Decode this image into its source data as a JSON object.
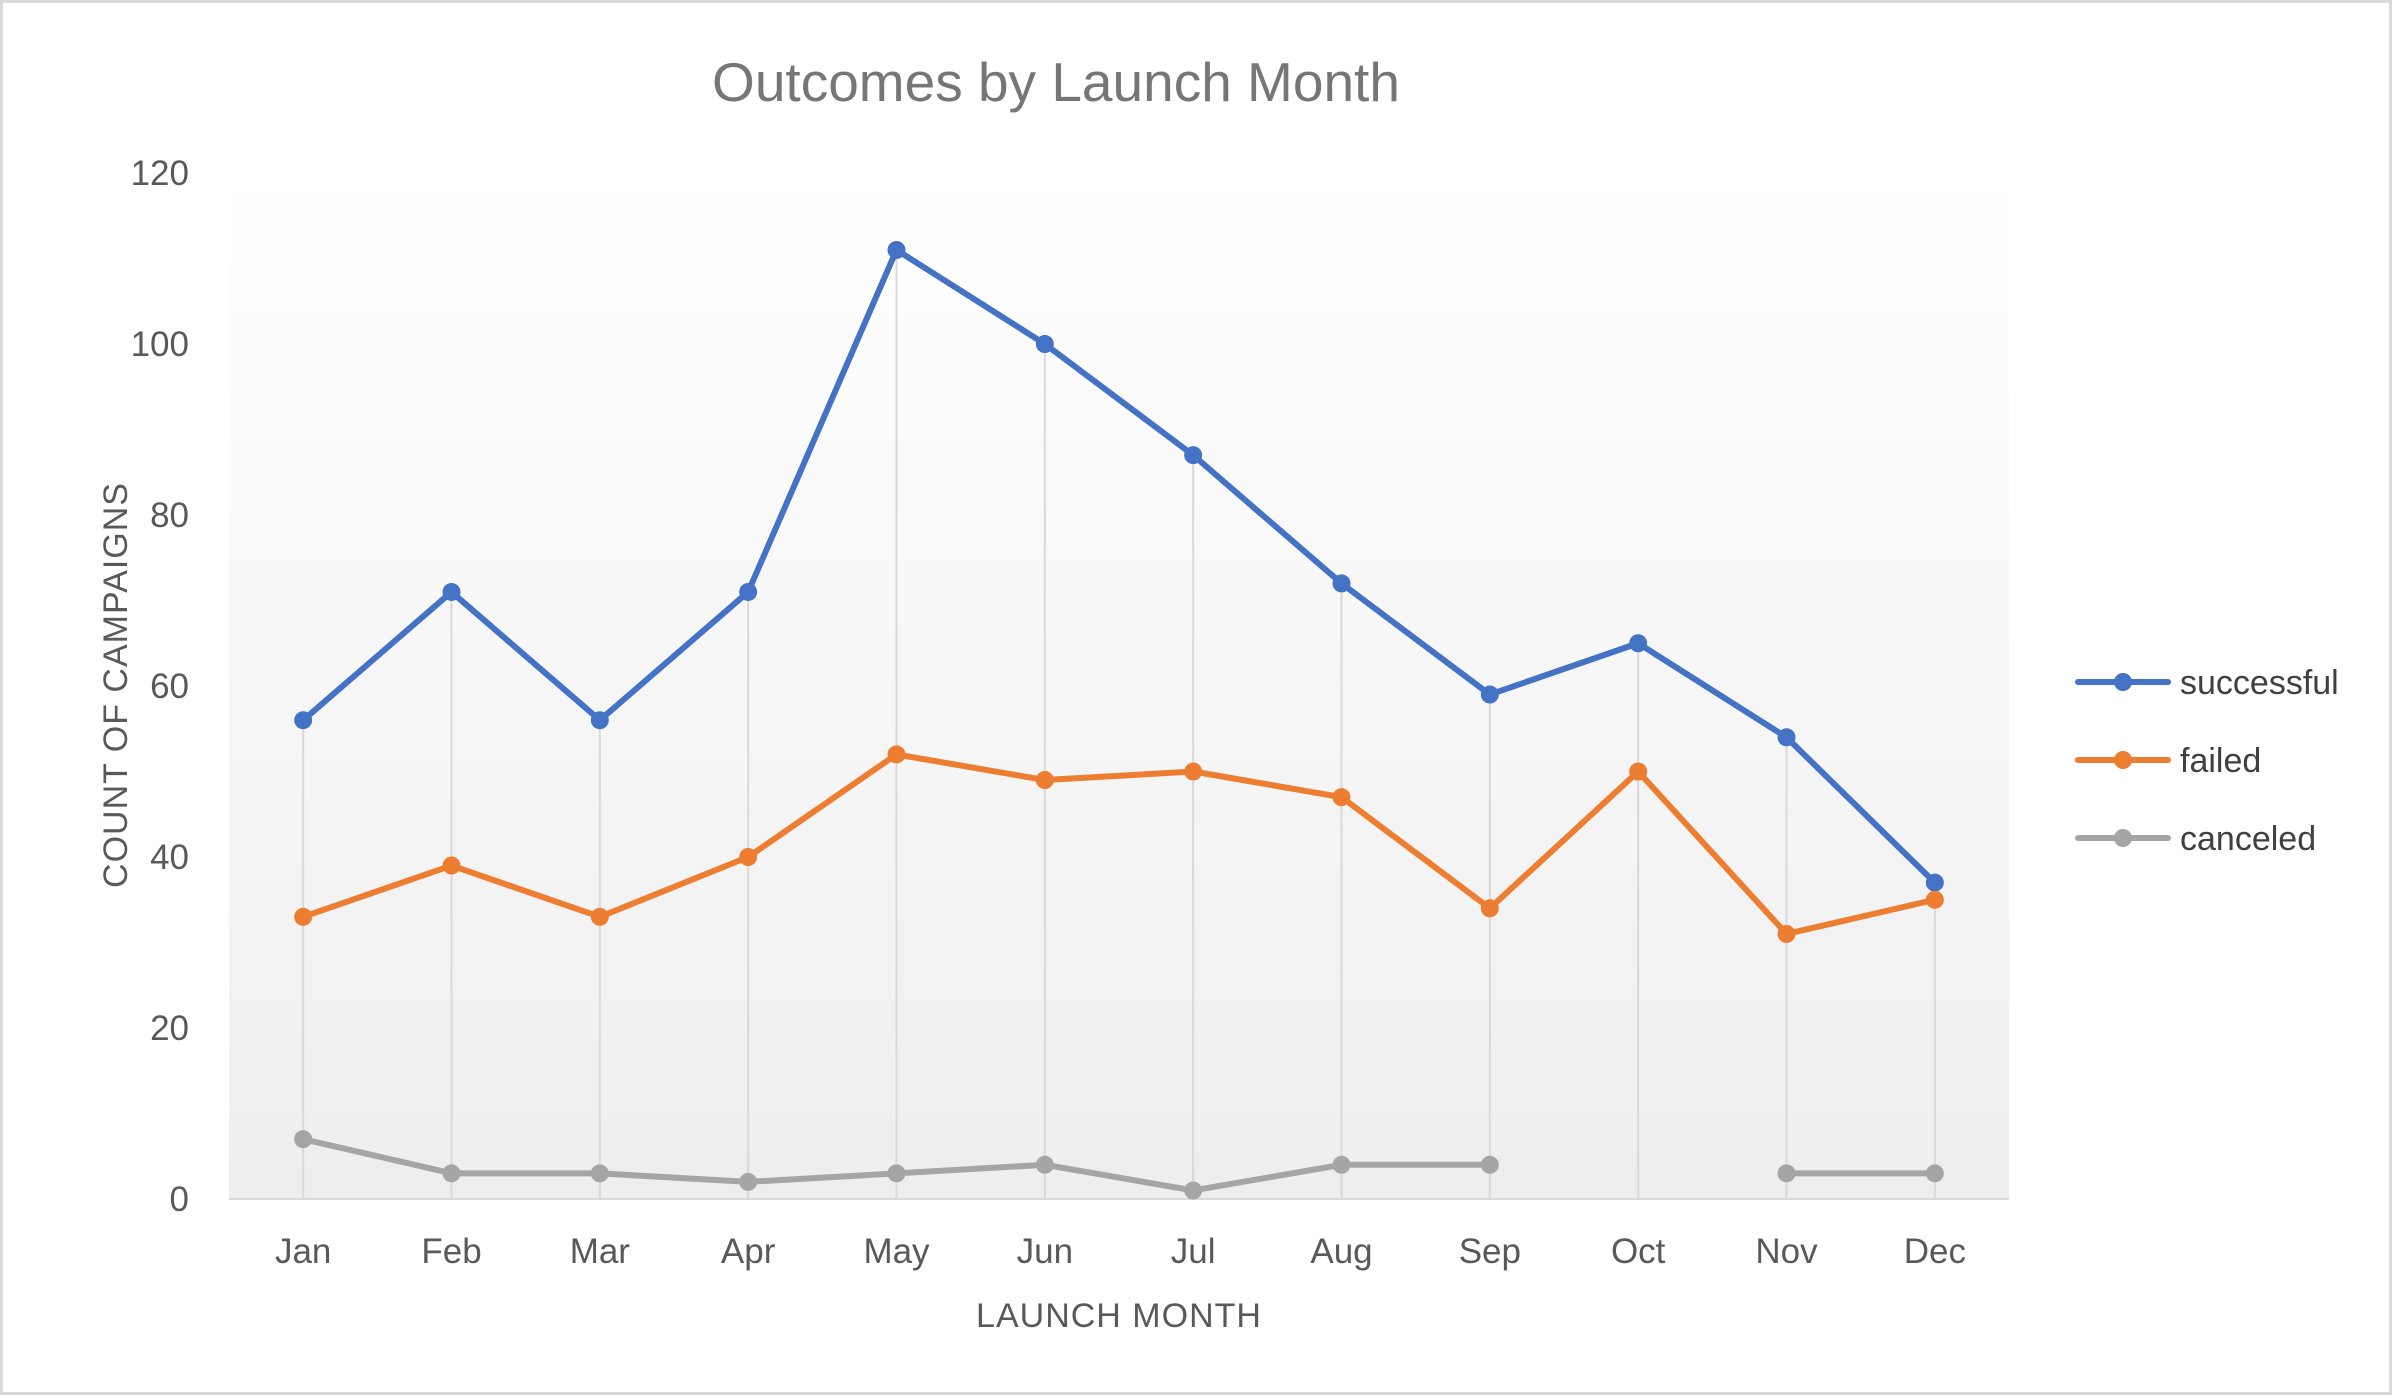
{
  "chart_data": {
    "type": "line",
    "title": "Outcomes by Launch Month",
    "xlabel": "LAUNCH MONTH",
    "ylabel": "COUNT OF CAMPAIGNS",
    "categories": [
      "Jan",
      "Feb",
      "Mar",
      "Apr",
      "May",
      "Jun",
      "Jul",
      "Aug",
      "Sep",
      "Oct",
      "Nov",
      "Dec"
    ],
    "ylim": [
      0,
      120
    ],
    "yticks": [
      0,
      20,
      40,
      60,
      80,
      100,
      120
    ],
    "grid": "vertical drop lines",
    "legend_position": "right",
    "series": [
      {
        "name": "successful",
        "color": "#4472c4",
        "values": [
          56,
          71,
          56,
          71,
          111,
          100,
          87,
          72,
          59,
          65,
          54,
          37
        ]
      },
      {
        "name": "failed",
        "color": "#ed7d31",
        "values": [
          33,
          39,
          33,
          40,
          52,
          49,
          50,
          47,
          34,
          50,
          31,
          35
        ]
      },
      {
        "name": "canceled",
        "color": "#a5a5a5",
        "values": [
          7,
          3,
          3,
          2,
          3,
          4,
          1,
          4,
          4,
          null,
          3,
          3
        ]
      }
    ]
  }
}
